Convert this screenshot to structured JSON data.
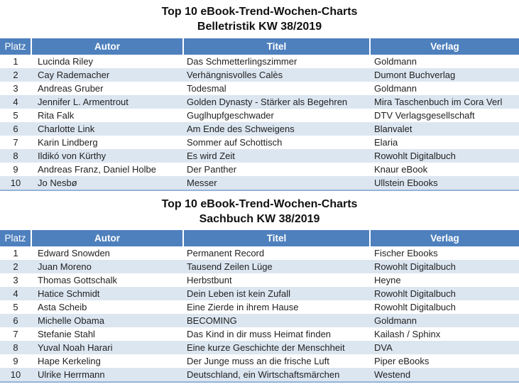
{
  "colors": {
    "header_bg": "#4E80BD",
    "header_text": "#FFFFFF",
    "band_bg": "#DCE6F1",
    "row_bg": "#FFFFFF",
    "body_text": "#222222",
    "table_bottom_border": "#95B3D7"
  },
  "tables": [
    {
      "title_line1": "Top 10  eBook-Trend-Wochen-Charts",
      "title_line2": "Belletristik KW 38/2019",
      "columns": [
        "Platz",
        "Autor",
        "Titel",
        "Verlag"
      ],
      "rows": [
        {
          "platz": "1",
          "autor": "Lucinda Riley",
          "titel": "Das Schmetterlingszimmer",
          "verlag": "Goldmann"
        },
        {
          "platz": "2",
          "autor": "Cay Rademacher",
          "titel": "Verhängnisvolles Calès",
          "verlag": "Dumont Buchverlag"
        },
        {
          "platz": "3",
          "autor": "Andreas Gruber",
          "titel": "Todesmal",
          "verlag": "Goldmann"
        },
        {
          "platz": "4",
          "autor": "Jennifer L. Armentrout",
          "titel": "Golden Dynasty - Stärker als Begehren",
          "verlag": "Mira Taschenbuch im Cora Verl"
        },
        {
          "platz": "5",
          "autor": "Rita Falk",
          "titel": "Guglhupfgeschwader",
          "verlag": "DTV Verlagsgesellschaft"
        },
        {
          "platz": "6",
          "autor": "Charlotte Link",
          "titel": "Am Ende des Schweigens",
          "verlag": "Blanvalet"
        },
        {
          "platz": "7",
          "autor": "Karin Lindberg",
          "titel": "Sommer auf Schottisch",
          "verlag": "Elaria"
        },
        {
          "platz": "8",
          "autor": "Ildikó von Kürthy",
          "titel": "Es wird Zeit",
          "verlag": "Rowohlt Digitalbuch"
        },
        {
          "platz": "9",
          "autor": "Andreas Franz, Daniel Holbe",
          "titel": "Der Panther",
          "verlag": "Knaur eBook"
        },
        {
          "platz": "10",
          "autor": "Jo Nesbø",
          "titel": "Messer",
          "verlag": "Ullstein Ebooks"
        }
      ]
    },
    {
      "title_line1": "Top 10 eBook-Trend-Wochen-Charts",
      "title_line2": "Sachbuch KW 38/2019",
      "columns": [
        "Platz",
        "Autor",
        "Titel",
        "Verlag"
      ],
      "rows": [
        {
          "platz": "1",
          "autor": "Edward Snowden",
          "titel": "Permanent Record",
          "verlag": "Fischer Ebooks"
        },
        {
          "platz": "2",
          "autor": "Juan Moreno",
          "titel": "Tausend Zeilen Lüge",
          "verlag": "Rowohlt Digitalbuch"
        },
        {
          "platz": "3",
          "autor": "Thomas Gottschalk",
          "titel": "Herbstbunt",
          "verlag": "Heyne"
        },
        {
          "platz": "4",
          "autor": "Hatice Schmidt",
          "titel": "Dein Leben ist kein Zufall",
          "verlag": "Rowohlt Digitalbuch"
        },
        {
          "platz": "5",
          "autor": "Asta Scheib",
          "titel": "Eine Zierde in ihrem Hause",
          "verlag": "Rowohlt Digitalbuch"
        },
        {
          "platz": "6",
          "autor": "Michelle Obama",
          "titel": "BECOMING",
          "verlag": "Goldmann"
        },
        {
          "platz": "7",
          "autor": "Stefanie Stahl",
          "titel": "Das Kind in dir muss Heimat finden",
          "verlag": "Kailash / Sphinx"
        },
        {
          "platz": "8",
          "autor": "Yuval Noah Harari",
          "titel": "Eine kurze Geschichte der Menschheit",
          "verlag": "DVA"
        },
        {
          "platz": "9",
          "autor": "Hape Kerkeling",
          "titel": "Der Junge muss an die frische Luft",
          "verlag": "Piper eBooks"
        },
        {
          "platz": "10",
          "autor": "Ulrike Herrmann",
          "titel": "Deutschland, ein Wirtschaftsmärchen",
          "verlag": "Westend"
        }
      ]
    }
  ]
}
